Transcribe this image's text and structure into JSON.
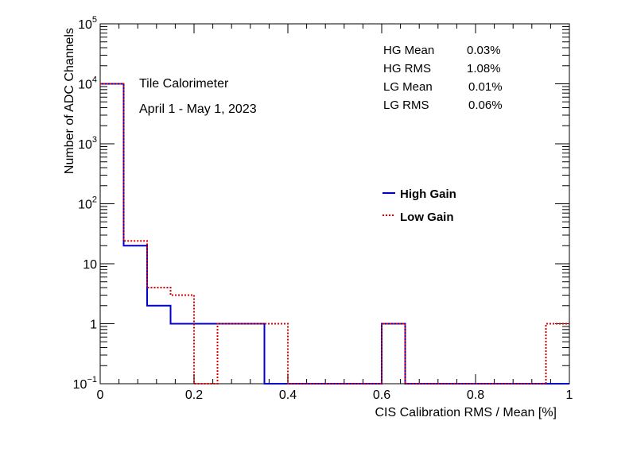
{
  "chart_data": {
    "type": "histogram",
    "xlabel": "CIS Calibration RMS / Mean [%]",
    "ylabel": "Number of ADC Channels",
    "xlim": [
      0,
      1
    ],
    "ylim": [
      0.1,
      100000
    ],
    "yscale": "log",
    "x_ticks": [
      "0",
      "0.2",
      "0.4",
      "0.6",
      "0.8",
      "1"
    ],
    "y_ticks": [
      {
        "base": "10",
        "exp": "−1"
      },
      {
        "base": "1",
        "exp": ""
      },
      {
        "base": "10",
        "exp": ""
      },
      {
        "base": "10",
        "exp": "2"
      },
      {
        "base": "10",
        "exp": "3"
      },
      {
        "base": "10",
        "exp": "4"
      },
      {
        "base": "10",
        "exp": "5"
      }
    ],
    "bin_edges": [
      0,
      0.05,
      0.1,
      0.15,
      0.2,
      0.25,
      0.3,
      0.35,
      0.4,
      0.45,
      0.5,
      0.55,
      0.6,
      0.65,
      0.7,
      0.75,
      0.8,
      0.85,
      0.9,
      0.95,
      1.0
    ],
    "series": [
      {
        "name": "High Gain",
        "color": "#0000cc",
        "style": "solid",
        "values": [
          10000,
          20,
          2,
          1,
          1,
          1,
          1,
          0,
          0,
          0,
          0,
          0,
          1,
          0,
          0,
          0,
          0,
          0,
          0,
          0
        ]
      },
      {
        "name": "Low Gain",
        "color": "#dd0000",
        "style": "dotted",
        "values": [
          10000,
          24,
          4,
          3,
          0,
          1,
          1,
          1,
          0,
          0,
          0,
          0,
          1,
          0,
          0,
          0,
          0,
          0,
          0,
          1
        ]
      }
    ],
    "annotations": {
      "line1": "Tile Calorimeter",
      "line2": "April 1 - May 1, 2023"
    },
    "stats": [
      {
        "label": "HG Mean",
        "value": "0.03%"
      },
      {
        "label": "HG RMS",
        "value": "1.08%"
      },
      {
        "label": "LG Mean",
        "value": "0.01%"
      },
      {
        "label": "LG RMS",
        "value": "0.06%"
      }
    ],
    "legend_position": "center-right",
    "grid": false
  }
}
